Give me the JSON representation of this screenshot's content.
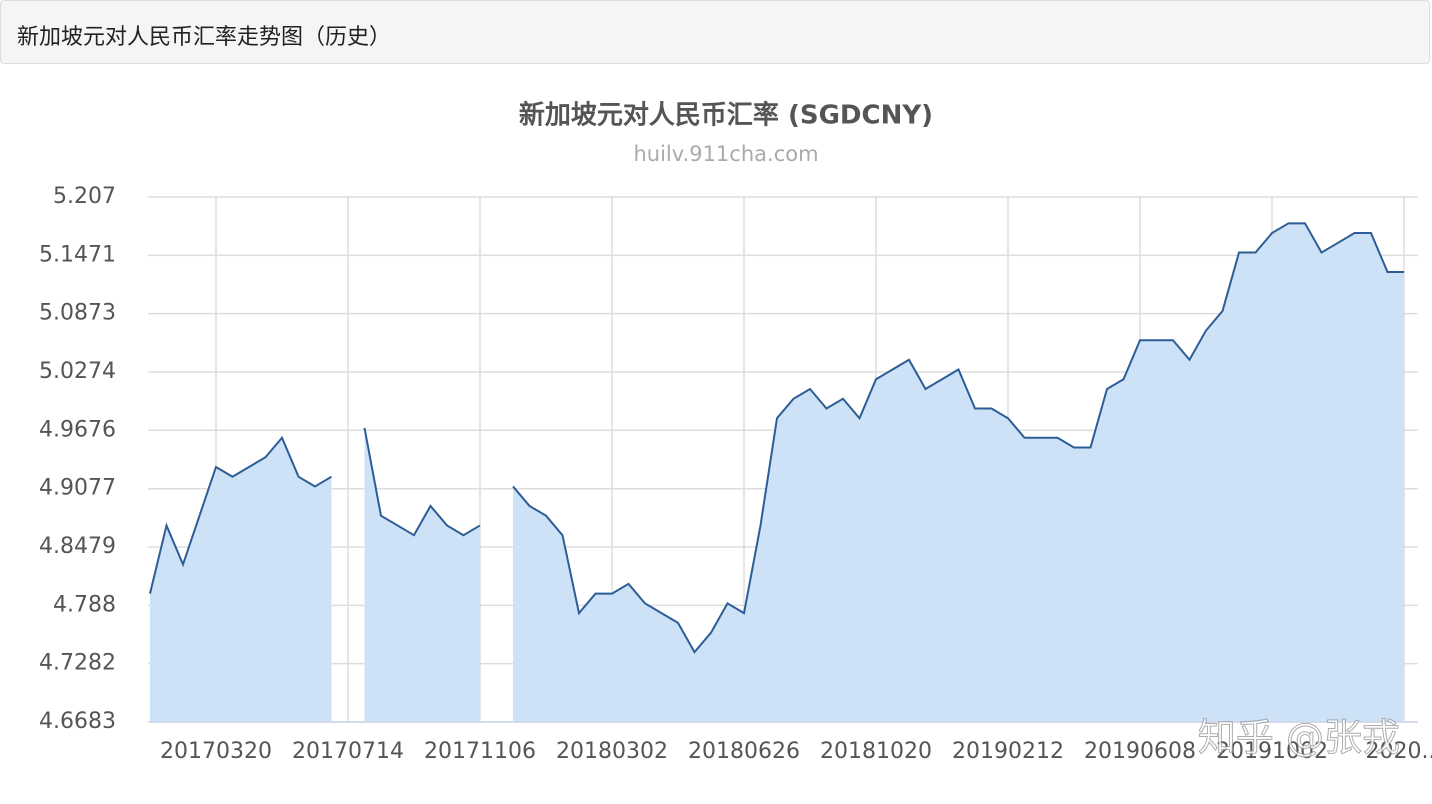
{
  "header": {
    "title": "新加坡元对人民币汇率走势图（历史）"
  },
  "chart_data": {
    "type": "area",
    "title": "新加坡元对人民币汇率 (SGDCNY)",
    "subtitle": "huilv.911cha.com",
    "watermark": "知乎 @张戎",
    "color": "#2c5d96",
    "fill_color": "#cde2f6",
    "grid": true,
    "ylim": [
      4.6683,
      5.207
    ],
    "yticks": [
      5.207,
      5.1471,
      5.0873,
      5.0274,
      4.9676,
      4.9077,
      4.8479,
      4.788,
      4.7282,
      4.6683
    ],
    "categories": [
      null,
      null,
      null,
      null,
      "20170320",
      null,
      null,
      null,
      null,
      null,
      null,
      null,
      "20170714",
      null,
      null,
      null,
      null,
      null,
      null,
      null,
      "20171106",
      null,
      null,
      null,
      null,
      null,
      null,
      null,
      "20180302",
      null,
      null,
      null,
      null,
      null,
      null,
      null,
      "20180626",
      null,
      null,
      null,
      null,
      null,
      null,
      null,
      "20181020",
      null,
      null,
      null,
      null,
      null,
      null,
      null,
      "20190212",
      null,
      null,
      null,
      null,
      null,
      null,
      null,
      "20190608",
      null,
      null,
      null,
      null,
      null,
      null,
      null,
      "20191002",
      null,
      null,
      null,
      null,
      null,
      null,
      null,
      "2020..."
    ],
    "values": [
      4.8,
      4.87,
      4.83,
      4.88,
      4.93,
      4.92,
      4.93,
      4.94,
      4.96,
      4.92,
      4.91,
      4.92,
      null,
      4.97,
      4.88,
      4.87,
      4.86,
      4.89,
      4.87,
      4.86,
      4.87,
      null,
      4.91,
      4.89,
      4.88,
      4.86,
      4.78,
      4.8,
      4.8,
      4.81,
      4.79,
      4.78,
      4.77,
      4.74,
      4.76,
      4.79,
      4.78,
      4.87,
      4.98,
      5.0,
      5.01,
      4.99,
      5.0,
      4.98,
      5.02,
      5.03,
      5.04,
      5.01,
      5.02,
      5.03,
      4.99,
      4.99,
      4.98,
      4.96,
      4.96,
      4.96,
      4.95,
      4.95,
      5.01,
      5.02,
      5.06,
      5.06,
      5.06,
      5.04,
      5.07,
      5.09,
      5.15,
      5.15,
      5.17,
      5.18,
      5.18,
      5.15,
      5.16,
      5.17,
      5.17,
      5.13,
      5.13
    ]
  }
}
